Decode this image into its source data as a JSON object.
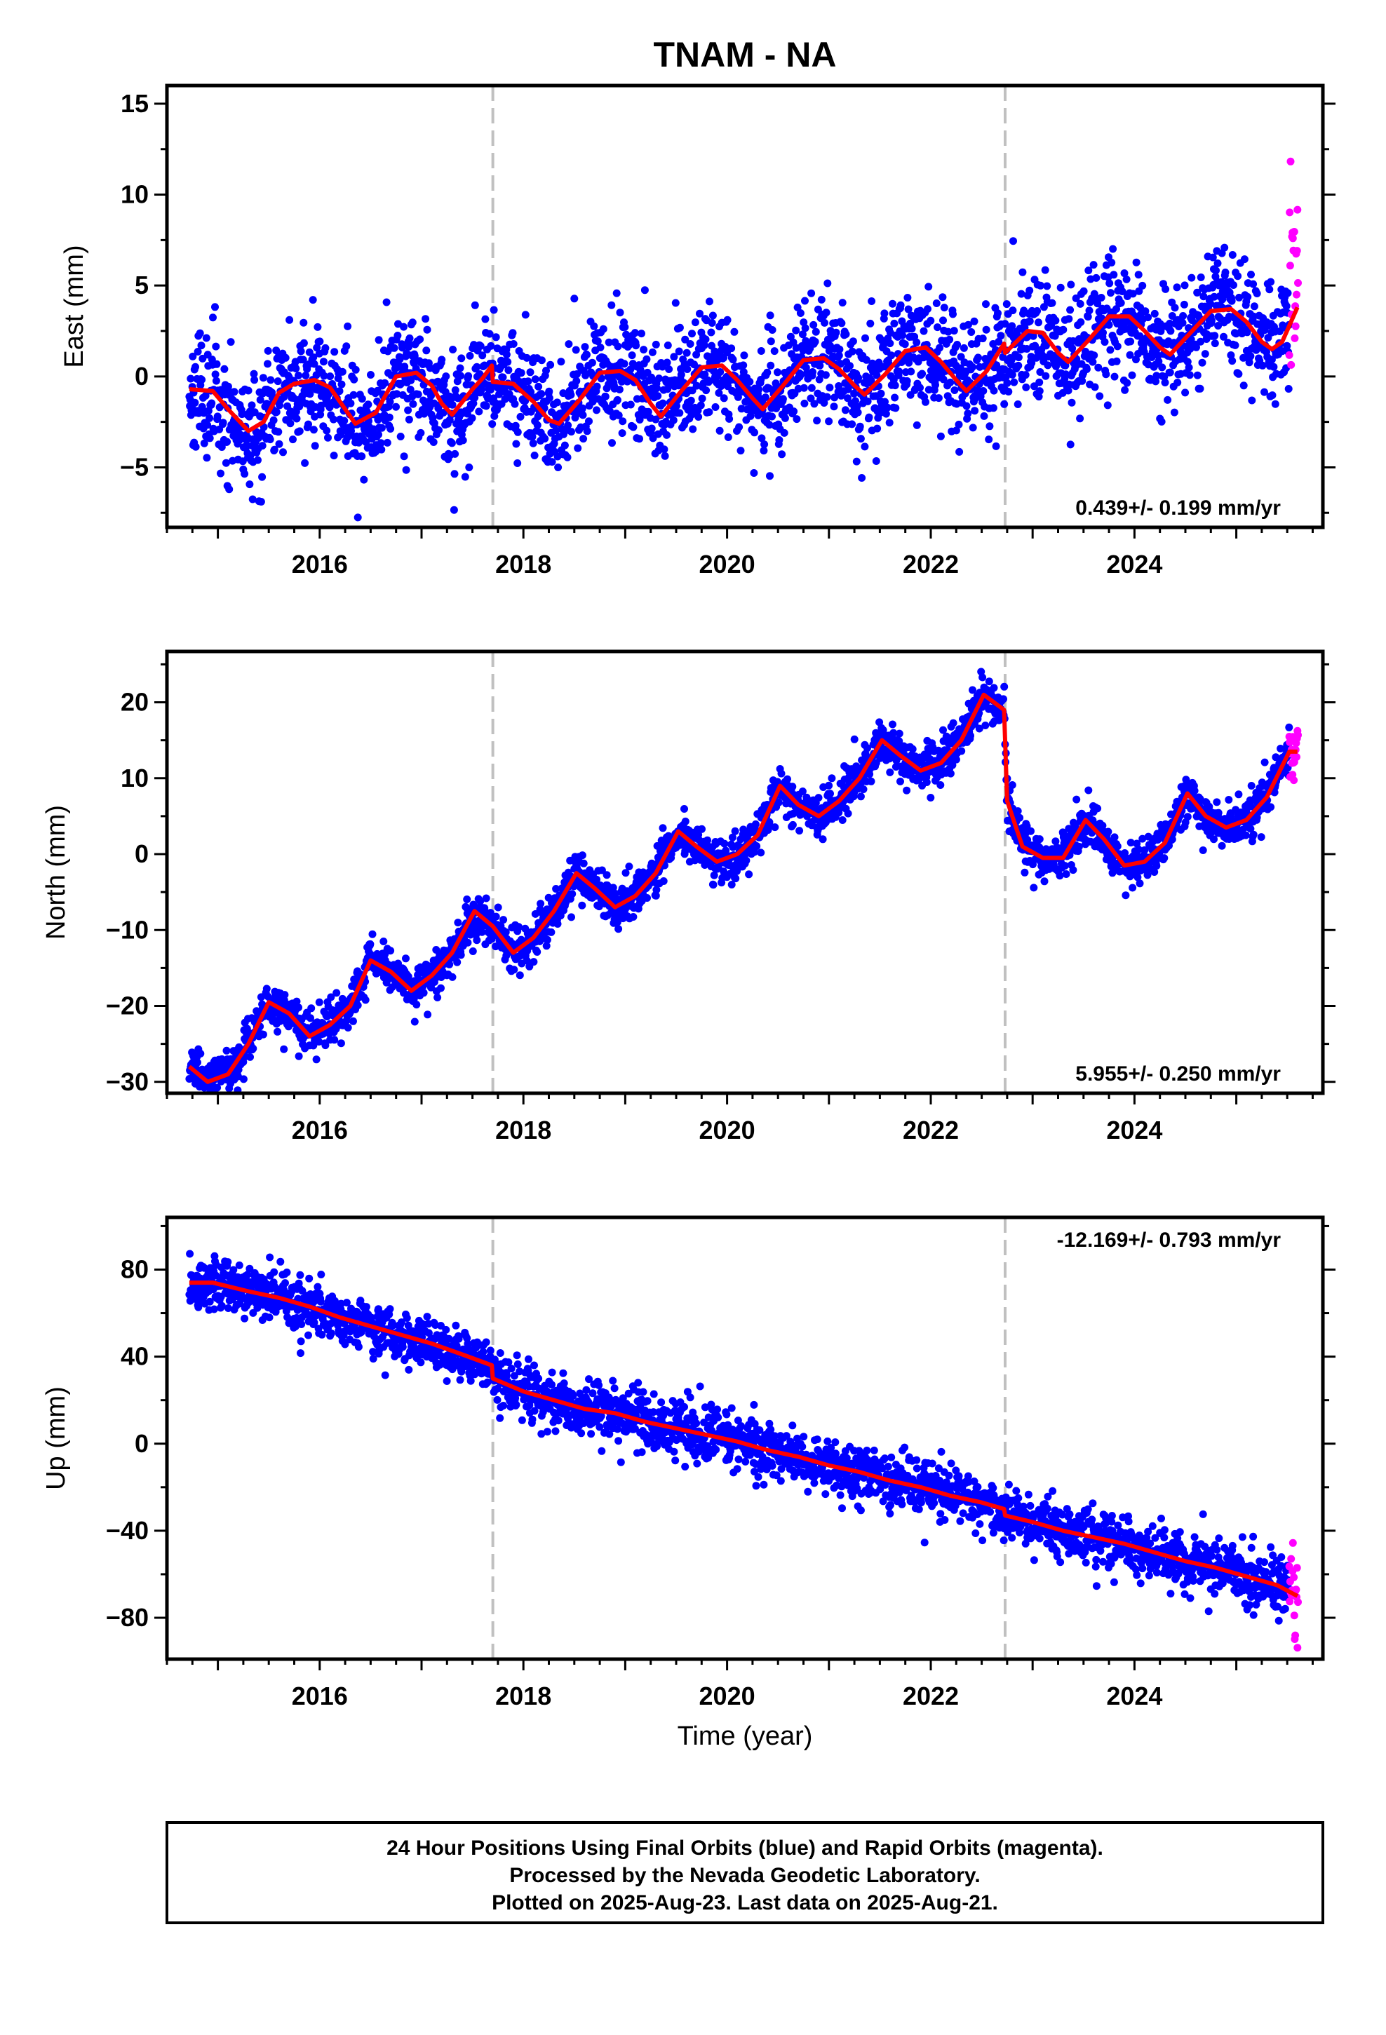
{
  "title": "TNAM - NA",
  "xlabel": "Time (year)",
  "footer": {
    "lines": [
      "24 Hour Positions Using Final Orbits (blue) and Rapid Orbits (magenta).",
      "Processed by the Nevada Geodetic Laboratory.",
      "Plotted on 2025-Aug-23. Last data on 2025-Aug-21."
    ]
  },
  "colors": {
    "final": "#0000ff",
    "rapid": "#ff00ff",
    "model": "#ff0000",
    "event_line": "#c0c0c0",
    "frame": "#000000"
  },
  "chart_data": [
    {
      "type": "scatter",
      "ylabel": "East (mm)",
      "rate": "0.439+/- 0.199 mm/yr",
      "rate_position": "bottom-right",
      "xlim": [
        2014.5,
        2025.85
      ],
      "ylim": [
        -8.3,
        16.0
      ],
      "xticks": [
        2016,
        2018,
        2020,
        2022,
        2024
      ],
      "xtick_labels": [
        "2016",
        "2018",
        "2020",
        "2022",
        "2024"
      ],
      "yticks": [
        -5,
        0,
        5,
        10,
        15
      ],
      "ytick_labels": [
        "−5",
        "0",
        "5",
        "10",
        "15"
      ],
      "event_lines": [
        2017.7,
        2022.73
      ],
      "grid": false,
      "series": [
        {
          "role": "model",
          "x": [
            2014.72,
            2014.95,
            2015.1,
            2015.3,
            2015.45,
            2015.6,
            2015.75,
            2015.95,
            2016.1,
            2016.25,
            2016.35,
            2016.55,
            2016.75,
            2016.95,
            2017.1,
            2017.2,
            2017.3,
            2017.5,
            2017.6,
            2017.69,
            2017.7,
            2017.9,
            2018.1,
            2018.25,
            2018.35,
            2018.55,
            2018.75,
            2018.95,
            2019.1,
            2019.25,
            2019.35,
            2019.55,
            2019.75,
            2019.95,
            2020.1,
            2020.25,
            2020.35,
            2020.55,
            2020.75,
            2020.95,
            2021.1,
            2021.25,
            2021.35,
            2021.55,
            2021.75,
            2021.95,
            2022.1,
            2022.25,
            2022.35,
            2022.55,
            2022.72,
            2022.73,
            2022.95,
            2023.1,
            2023.25,
            2023.35,
            2023.55,
            2023.75,
            2023.95,
            2024.1,
            2024.25,
            2024.35,
            2024.55,
            2024.75,
            2024.95,
            2025.1,
            2025.25,
            2025.35,
            2025.45,
            2025.6
          ],
          "y": [
            -0.7,
            -0.8,
            -1.8,
            -3.0,
            -2.5,
            -0.9,
            -0.4,
            -0.2,
            -0.6,
            -1.8,
            -2.6,
            -2.0,
            0.0,
            0.2,
            -0.5,
            -1.5,
            -2.1,
            -0.7,
            -0.1,
            0.6,
            -0.3,
            -0.4,
            -1.4,
            -2.4,
            -2.6,
            -1.3,
            0.2,
            0.3,
            -0.2,
            -1.5,
            -2.2,
            -0.8,
            0.5,
            0.6,
            -0.2,
            -1.2,
            -1.8,
            -0.5,
            0.9,
            1.0,
            0.4,
            -0.5,
            -1.0,
            0.1,
            1.4,
            1.6,
            0.8,
            -0.2,
            -0.8,
            0.3,
            1.8,
            1.3,
            2.5,
            2.4,
            1.3,
            0.8,
            2.0,
            3.3,
            3.3,
            2.5,
            1.6,
            1.2,
            2.4,
            3.6,
            3.7,
            3.0,
            1.9,
            1.5,
            1.9,
            3.8
          ]
        }
      ],
      "noise": {
        "amplitude": 1.6,
        "rapid_count": 20,
        "seed": 11
      }
    },
    {
      "type": "scatter",
      "ylabel": "North (mm)",
      "rate": "5.955+/- 0.250 mm/yr",
      "rate_position": "bottom-right",
      "xlim": [
        2014.5,
        2025.85
      ],
      "ylim": [
        -31.5,
        26.7
      ],
      "xticks": [
        2016,
        2018,
        2020,
        2022,
        2024
      ],
      "xtick_labels": [
        "2016",
        "2018",
        "2020",
        "2022",
        "2024"
      ],
      "yticks": [
        -30,
        -20,
        -10,
        0,
        10,
        20
      ],
      "ytick_labels": [
        "−30",
        "−20",
        "−10",
        "0",
        "10",
        "20"
      ],
      "event_lines": [
        2017.7,
        2022.73
      ],
      "grid": false,
      "series": [
        {
          "role": "model",
          "x": [
            2014.72,
            2014.9,
            2015.1,
            2015.3,
            2015.5,
            2015.7,
            2015.9,
            2016.1,
            2016.3,
            2016.5,
            2016.7,
            2016.9,
            2017.1,
            2017.3,
            2017.52,
            2017.7,
            2017.9,
            2018.1,
            2018.3,
            2018.52,
            2018.7,
            2018.9,
            2019.1,
            2019.3,
            2019.52,
            2019.7,
            2019.9,
            2020.1,
            2020.3,
            2020.52,
            2020.7,
            2020.9,
            2021.1,
            2021.3,
            2021.52,
            2021.7,
            2021.9,
            2022.1,
            2022.3,
            2022.52,
            2022.72,
            2022.75,
            2022.9,
            2023.1,
            2023.3,
            2023.52,
            2023.7,
            2023.9,
            2024.1,
            2024.3,
            2024.52,
            2024.7,
            2024.9,
            2025.1,
            2025.3,
            2025.52,
            2025.6
          ],
          "y": [
            -28.0,
            -30.0,
            -29.0,
            -25.0,
            -19.5,
            -21.0,
            -24.0,
            -22.5,
            -20.0,
            -14.0,
            -15.5,
            -18.0,
            -16.0,
            -13.0,
            -7.5,
            -9.5,
            -13.0,
            -11.0,
            -7.5,
            -2.5,
            -4.5,
            -7.0,
            -5.5,
            -2.5,
            3.0,
            1.0,
            -1.0,
            0.0,
            2.5,
            9.0,
            6.5,
            5.0,
            7.0,
            10.0,
            15.0,
            13.0,
            11.0,
            12.0,
            15.0,
            21.0,
            19.0,
            7.0,
            1.0,
            -0.5,
            -0.5,
            4.5,
            2.0,
            -1.5,
            -1.0,
            1.5,
            8.0,
            5.0,
            3.5,
            4.5,
            7.5,
            13.5,
            13.5
          ]
        }
      ],
      "noise": {
        "amplitude": 1.4,
        "rapid_count": 20,
        "seed": 23
      }
    },
    {
      "type": "scatter",
      "ylabel": "Up (mm)",
      "rate": "-12.169+/- 0.793 mm/yr",
      "rate_position": "top-right",
      "xlim": [
        2014.5,
        2025.85
      ],
      "ylim": [
        -99.0,
        104.0
      ],
      "xticks": [
        2016,
        2018,
        2020,
        2022,
        2024
      ],
      "xtick_labels": [
        "2016",
        "2018",
        "2020",
        "2022",
        "2024"
      ],
      "yticks": [
        -80,
        -40,
        0,
        40,
        80
      ],
      "ytick_labels": [
        "−80",
        "−40",
        "0",
        "40",
        "80"
      ],
      "event_lines": [
        2017.7,
        2022.73
      ],
      "grid": false,
      "series": [
        {
          "role": "model",
          "x": [
            2014.72,
            2014.95,
            2015.3,
            2015.6,
            2015.9,
            2016.2,
            2016.5,
            2016.8,
            2017.1,
            2017.4,
            2017.69,
            2017.7,
            2018.0,
            2018.3,
            2018.6,
            2018.9,
            2019.2,
            2019.5,
            2019.8,
            2020.1,
            2020.4,
            2020.7,
            2021.0,
            2021.3,
            2021.6,
            2021.9,
            2022.2,
            2022.5,
            2022.72,
            2022.73,
            2023.0,
            2023.3,
            2023.6,
            2023.9,
            2024.2,
            2024.5,
            2024.8,
            2025.1,
            2025.4,
            2025.6
          ],
          "y": [
            74,
            74,
            70,
            67,
            63,
            58,
            54,
            50,
            46,
            41,
            36,
            30,
            24,
            20,
            16,
            14,
            10,
            7,
            4,
            1,
            -3,
            -6,
            -10,
            -13,
            -17,
            -20,
            -24,
            -27,
            -30,
            -33,
            -36,
            -40,
            -43,
            -46,
            -50,
            -54,
            -57,
            -61,
            -65,
            -70
          ]
        }
      ],
      "noise": {
        "amplitude": 6.0,
        "rapid_count": 20,
        "seed": 37
      }
    }
  ]
}
